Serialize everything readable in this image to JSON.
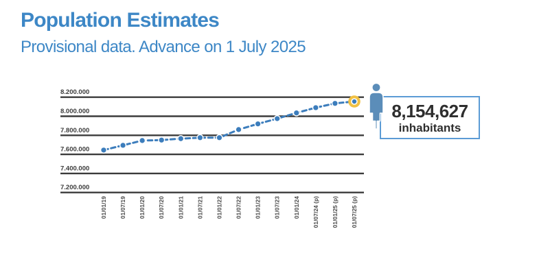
{
  "header": {
    "title": "Population Estimates",
    "subtitle": "Provisional data. Advance on 1 July 2025",
    "title_color": "#3d87c6"
  },
  "callout": {
    "value": "8,154,627",
    "label": "inhabitants",
    "border_color": "#5b9bd5",
    "text_color": "#2e2e2e",
    "icon": "person-icon",
    "icon_color": "#5b8db9"
  },
  "chart_data": {
    "type": "line",
    "title": "Population Estimates",
    "line_style": "dashed",
    "markers": true,
    "grid": "horizontal",
    "legend": false,
    "x_labels": [
      "01/01/19",
      "01/07/19",
      "01/01/20",
      "01/07/20",
      "01/01/21",
      "01/07/21",
      "01/01/22",
      "01/07/22",
      "01/01/23",
      "01/07/23",
      "01/01/24",
      "01/07/24 (p)",
      "01/01/25 (p)",
      "01/07/25 (p)"
    ],
    "values": [
      7645000,
      7695000,
      7745000,
      7750000,
      7765000,
      7775000,
      7775000,
      7860000,
      7920000,
      7975000,
      8035000,
      8090000,
      8135000,
      8154627
    ],
    "y_ticks": [
      7200000,
      7400000,
      7600000,
      7800000,
      8000000,
      8200000
    ],
    "y_tick_labels": [
      "7.200.000",
      "7.400.000",
      "7.600.000",
      "7.800.000",
      "8.000.000",
      "8.200.000"
    ],
    "ylim": [
      7200000,
      8200000
    ],
    "highlight": {
      "index": 13,
      "value": 8154627,
      "color": "#f1c143"
    },
    "line_color": "#3c7dbc",
    "marker_color": "#3c7dbc",
    "grid_color": "#3b3b3b",
    "axis_label_color": "#4c4c4c"
  }
}
